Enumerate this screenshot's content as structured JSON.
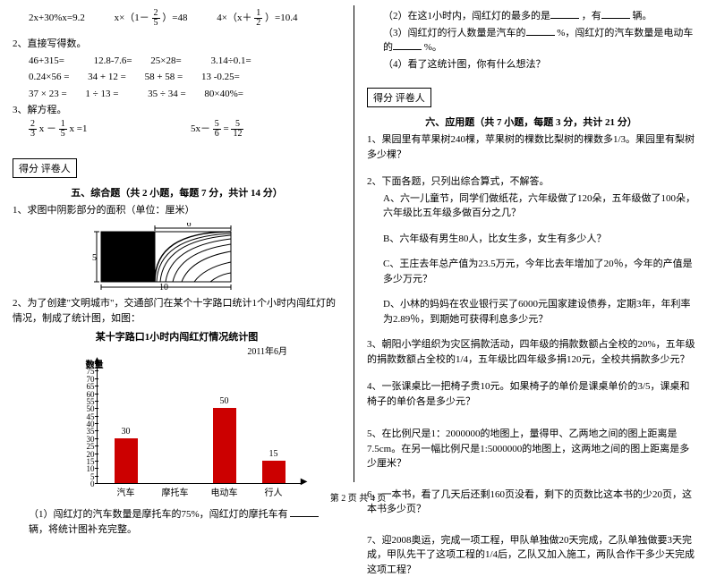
{
  "left": {
    "eq1a": "2x+30%x=9.2",
    "eq1b_pre": "x×（1－",
    "eq1b_frac_n": "2",
    "eq1b_frac_d": "5",
    "eq1b_post": "）=48",
    "eq1c_pre": "4×（x＋",
    "eq1c_frac_n": "1",
    "eq1c_frac_d": "2",
    "eq1c_post": "）=10.4",
    "q2": "2、直接写得数。",
    "r1a": "46+315=",
    "r1b": "12.8-7.6=",
    "r1c": "25×28=",
    "r1d": "3.14÷0.1=",
    "r2a": "0.24×56 =",
    "r2b": "34 + 12 =",
    "r2c": "58 + 58 =",
    "r2d": "13 -0.25=",
    "r3a": "37 × 23 =",
    "r3b": "1 ÷ 13 =",
    "r3c": "35 ÷ 34 =",
    "r3d": "80×40%=",
    "q3": "3、解方程。",
    "eq3a_n1": "2",
    "eq3a_d1": "3",
    "eq3a_mid": " x － ",
    "eq3a_n2": "1",
    "eq3a_d2": "5",
    "eq3a_post": " x =1",
    "eq3b_pre": "5x－ ",
    "eq3b_n1": "5",
    "eq3b_d1": "6",
    "eq3b_mid": " = ",
    "eq3b_n2": "5",
    "eq3b_d2": "12",
    "score_label": "得分  评卷人",
    "sec5": "五、综合题（共 2 小题，每题 7 分，共计 14 分）",
    "q5_1": "1、求图中阴影部分的面积（单位：厘米）",
    "shape_top": "6",
    "shape_left": "5",
    "shape_bottom": "10",
    "q5_2": "2、为了创建\"文明城市\"，交通部门在某个十字路口统计1个小时内闯红灯的情况，制成了统计图，如图：",
    "chart_title": "某十字路口1小时内闯红灯情况统计图",
    "chart_date": "2011年6月",
    "ylabel": "数量",
    "chart_ticks": [
      0,
      5,
      10,
      15,
      20,
      25,
      30,
      35,
      40,
      45,
      50,
      55,
      60,
      65,
      70,
      75,
      80
    ],
    "chart_cats": [
      "汽车",
      "摩托车",
      "电动车",
      "行人"
    ],
    "chart_vals": [
      30,
      null,
      50,
      15
    ],
    "chart_bg": "#ffffff",
    "chart_bar_color": "#cc0000",
    "q5_2_sub1_a": "（1）闯红灯的汽车数量是摩托车的75%，闯红灯的摩托车有",
    "q5_2_sub1_b": "辆，将统计图补充完整。"
  },
  "right": {
    "s2a": "（2）在这1小时内，闯红灯的最多的是",
    "s2b": "，有",
    "s2c": "辆。",
    "s3a": "（3）闯红灯的行人数量是汽车的",
    "s3b": "%，闯红灯的汽车数量是电动车的",
    "s3c": "%。",
    "s4": "（4）看了这统计图，你有什么想法？",
    "score_label": "得分  评卷人",
    "sec6": "六、应用题（共 7 小题，每题 3 分，共计 21 分）",
    "q1": "1、果园里有苹果树240棵，苹果树的棵数比梨树的棵数多1/3。果园里有梨树多少棵？",
    "q2": "2、下面各题，只列出综合算式，不解答。",
    "q2a": "A、六一儿童节，同学们做纸花，六年级做了120朵，五年级做了100朵，六年级比五年级多做百分之几？",
    "q2b": "B、六年级有男生80人，比女生多，女生有多少人？",
    "q2c": "C、王庄去年总产值为23.5万元，今年比去年增加了20％，今年的产值是多少万元？",
    "q2d": "D、小林的妈妈在农业银行买了6000元国家建设债券，定期3年，年利率为2.89％，到期她可获得利息多少元？",
    "q3": "3、朝阳小学组织为灾区捐款活动，四年级的捐款数额占全校的20%，五年级的捐款数额占全校的1/4，五年级比四年级多捐120元，全校共捐款多少元？",
    "q4": "4、一张课桌比一把椅子贵10元。如果椅子的单价是课桌单价的3/5，课桌和椅子的单价各是多少元？",
    "q5": "5、在比例尺是1：2000000的地图上，量得甲、乙两地之间的图上距离是7.5cm。在另一幅比例尺是1:5000000的地图上，这两地之间的图上距离是多少厘米？",
    "q6": "6、一本书，看了几天后还剩160页没看，剩下的页数比这本书的少20页，这本书多少页？",
    "q7": "7、迎2008奥运，完成一项工程，甲队单独做20天完成，乙队单独做要3天完成，甲队先干了这项工程的1/4后，乙队又加入施工，两队合作干多少天完成这项工程？"
  },
  "footer": "第 2 页  共 4 页"
}
